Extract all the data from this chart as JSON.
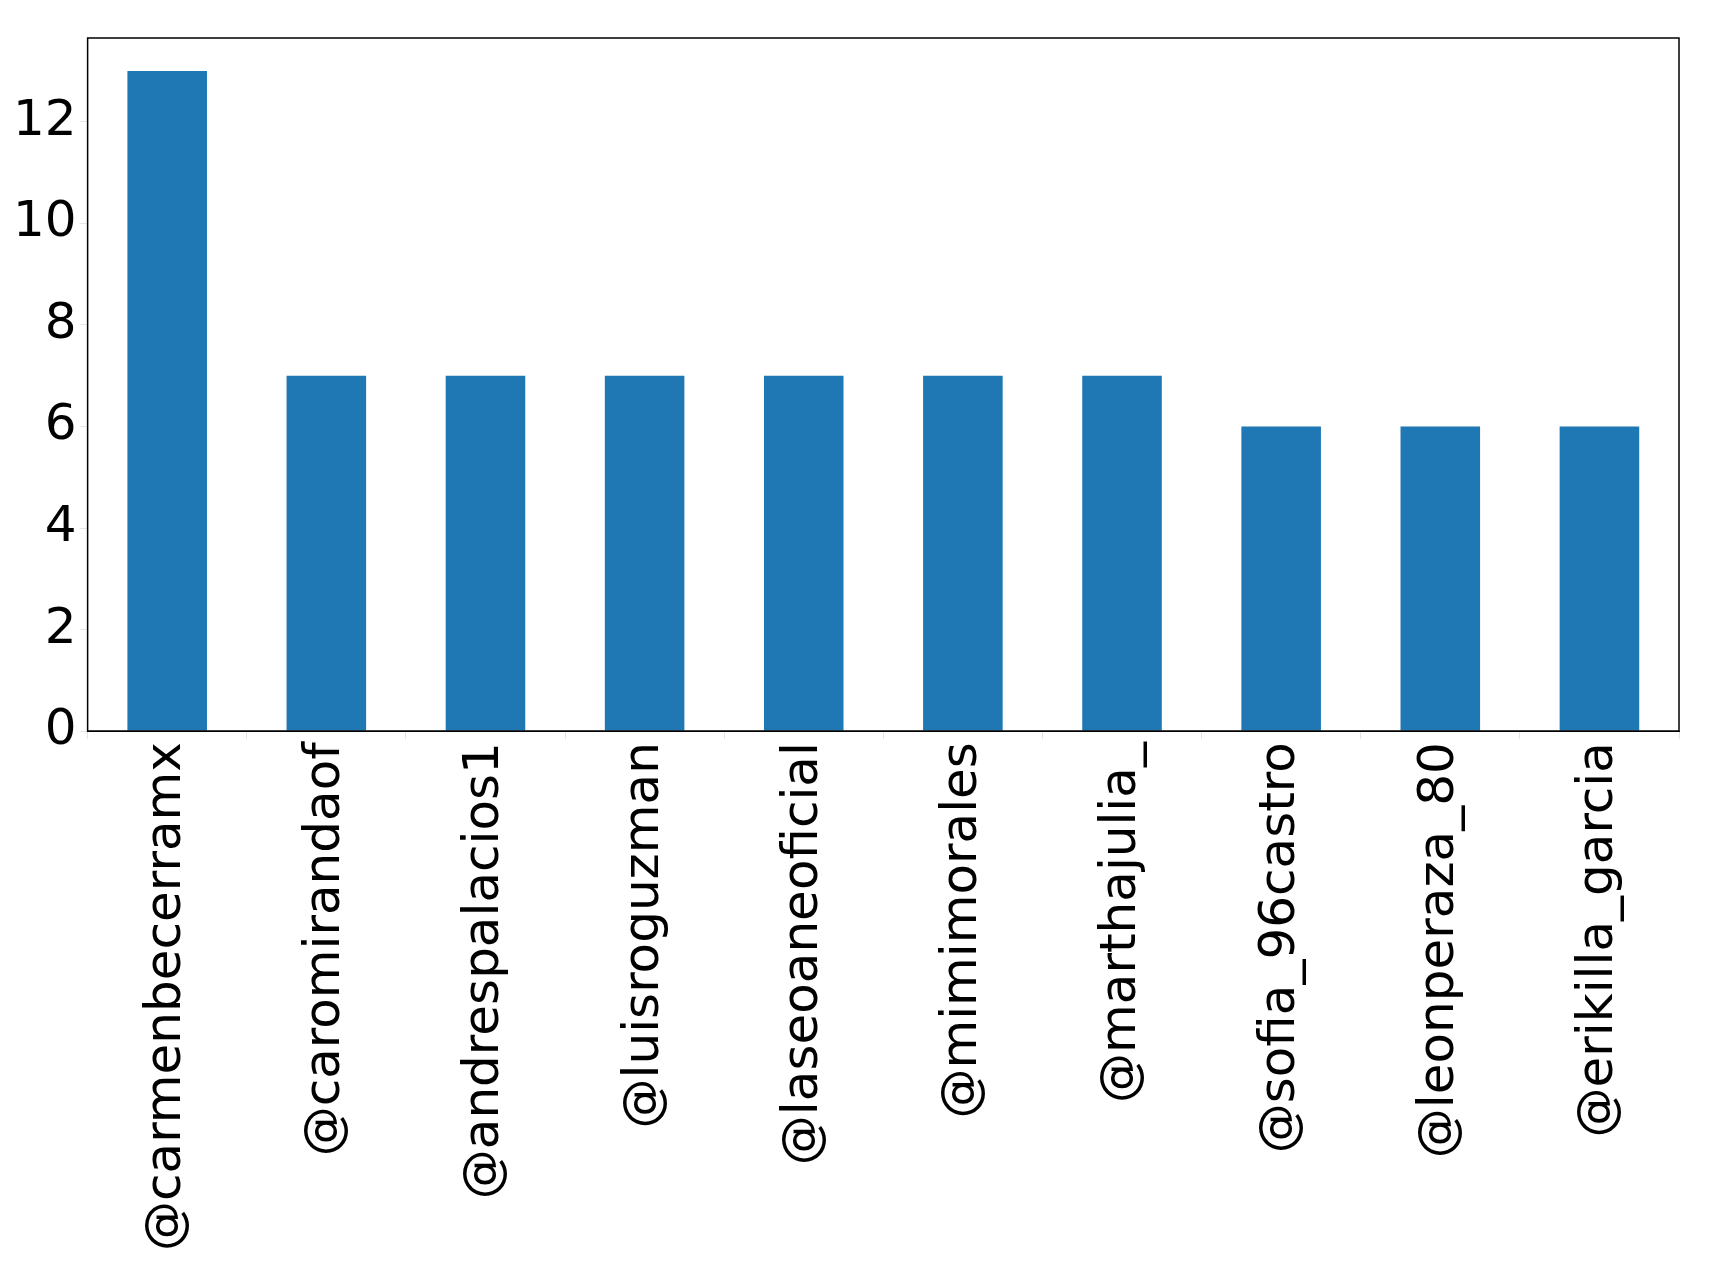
{
  "chart_data": {
    "type": "bar",
    "categories": [
      "@carmenbecerramx",
      "@caromirandaof",
      "@andrespalacios1",
      "@luisroguzman",
      "@laseoaneoficial",
      "@mimimorales",
      "@marthajulia_",
      "@sofia_96castro",
      "@leonperaza_80",
      "@erikilla_garcia"
    ],
    "values": [
      13,
      7,
      7,
      7,
      7,
      7,
      7,
      6,
      6,
      6
    ],
    "color": "#1f77b4",
    "ylim": [
      0,
      13.65
    ],
    "yticks": [
      0,
      2,
      4,
      6,
      8,
      10,
      12
    ],
    "grid": false,
    "legend": false
  }
}
